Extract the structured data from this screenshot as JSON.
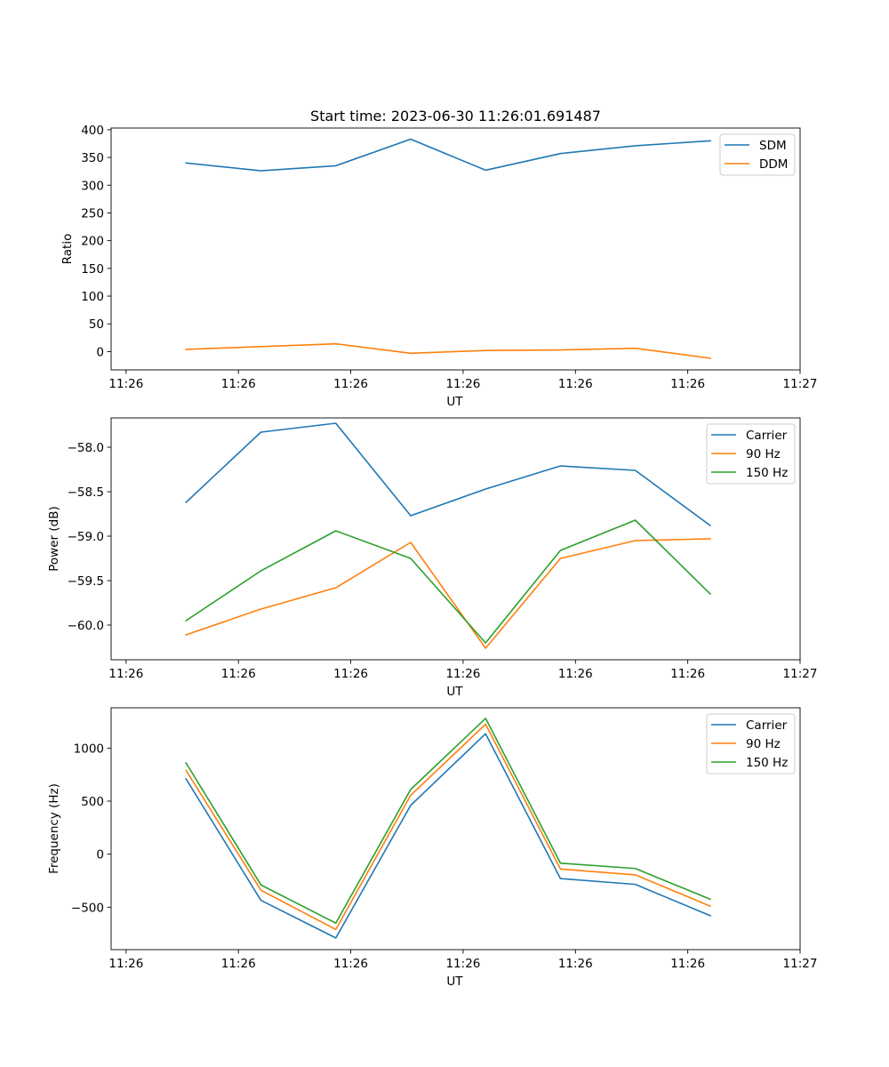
{
  "colors": {
    "blue": "#1f77b4",
    "orange": "#ff7f0e",
    "green": "#2ca02c"
  },
  "chart_data": [
    {
      "type": "line",
      "title": "Start time: 2023-06-30 11:26:01.691487",
      "xlabel": "UT",
      "ylabel": "Ratio",
      "x": [
        1.0,
        2.0,
        3.0,
        4.0,
        5.0,
        6.0,
        7.0,
        8.0
      ],
      "xlim": [
        0.0,
        9.2
      ],
      "xticks": [
        0.2,
        1.7,
        3.2,
        4.7,
        6.2,
        7.7,
        9.2
      ],
      "xtick_labels": [
        "11:26",
        "11:26",
        "11:26",
        "11:26",
        "11:26",
        "11:26",
        "11:27"
      ],
      "ylim": [
        -33,
        403
      ],
      "yticks": [
        0,
        50,
        100,
        150,
        200,
        250,
        300,
        350,
        400
      ],
      "ytick_labels": [
        "0",
        "50",
        "100",
        "150",
        "200",
        "250",
        "300",
        "350",
        "400"
      ],
      "legend": "top-right",
      "grid": false,
      "series": [
        {
          "name": "SDM",
          "color": "#1f77b4",
          "values": [
            340,
            326,
            335,
            383,
            327,
            357,
            371,
            380
          ]
        },
        {
          "name": "DDM",
          "color": "#ff7f0e",
          "values": [
            4,
            9,
            14,
            -3,
            2,
            3,
            6,
            -12
          ]
        }
      ]
    },
    {
      "type": "line",
      "title": "",
      "xlabel": "UT",
      "ylabel": "Power (dB)",
      "x": [
        1.0,
        2.0,
        3.0,
        4.0,
        5.0,
        6.0,
        7.0,
        8.0
      ],
      "xlim": [
        0.0,
        9.2
      ],
      "xticks": [
        0.2,
        1.7,
        3.2,
        4.7,
        6.2,
        7.7,
        9.2
      ],
      "xtick_labels": [
        "11:26",
        "11:26",
        "11:26",
        "11:26",
        "11:26",
        "11:26",
        "11:27"
      ],
      "ylim": [
        -60.39,
        -57.67
      ],
      "yticks": [
        -60.0,
        -59.5,
        -59.0,
        -58.5,
        -58.0
      ],
      "ytick_labels": [
        "−60.0",
        "−59.5",
        "−59.0",
        "−58.5",
        "−58.0"
      ],
      "legend": "top-right",
      "grid": false,
      "series": [
        {
          "name": "Carrier",
          "color": "#1f77b4",
          "values": [
            -58.62,
            -57.83,
            -57.73,
            -58.77,
            -58.47,
            -58.21,
            -58.26,
            -58.88
          ]
        },
        {
          "name": "90 Hz",
          "color": "#ff7f0e",
          "values": [
            -60.11,
            -59.82,
            -59.58,
            -59.07,
            -60.26,
            -59.25,
            -59.05,
            -59.03
          ]
        },
        {
          "name": "150 Hz",
          "color": "#2ca02c",
          "values": [
            -59.95,
            -59.39,
            -58.94,
            -59.25,
            -60.2,
            -59.16,
            -58.82,
            -59.65
          ]
        }
      ]
    },
    {
      "type": "line",
      "title": "",
      "xlabel": "UT",
      "ylabel": "Frequency (Hz)",
      "x": [
        1.0,
        2.0,
        3.0,
        4.0,
        5.0,
        6.0,
        7.0,
        8.0
      ],
      "xlim": [
        0.0,
        9.2
      ],
      "xticks": [
        0.2,
        1.7,
        3.2,
        4.7,
        6.2,
        7.7,
        9.2
      ],
      "xtick_labels": [
        "11:26",
        "11:26",
        "11:26",
        "11:26",
        "11:26",
        "11:26",
        "11:27"
      ],
      "ylim": [
        -900,
        1380
      ],
      "yticks": [
        -500,
        0,
        500,
        1000
      ],
      "ytick_labels": [
        "−500",
        "0",
        "500",
        "1000"
      ],
      "legend": "top-right",
      "grid": false,
      "series": [
        {
          "name": "Carrier",
          "color": "#1f77b4",
          "values": [
            710,
            -435,
            -790,
            460,
            1135,
            -230,
            -285,
            -580
          ]
        },
        {
          "name": "90 Hz",
          "color": "#ff7f0e",
          "values": [
            790,
            -340,
            -710,
            555,
            1225,
            -140,
            -195,
            -490
          ]
        },
        {
          "name": "150 Hz",
          "color": "#2ca02c",
          "values": [
            860,
            -290,
            -650,
            610,
            1280,
            -85,
            -135,
            -425
          ]
        }
      ]
    }
  ]
}
